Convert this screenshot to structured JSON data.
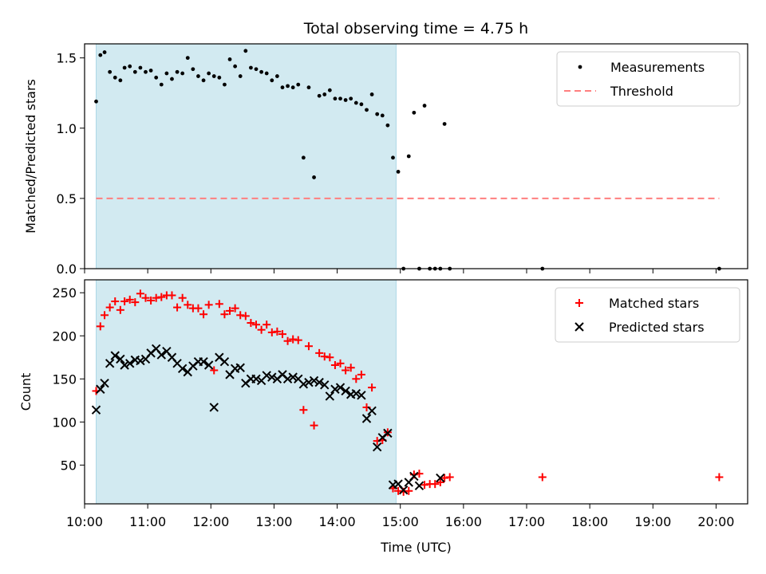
{
  "chart_data": [
    {
      "type": "scatter",
      "title": "Total observing time = 4.75 h",
      "xlabel": "",
      "ylabel": "Matched/Predicted stars",
      "xlim": [
        "10:00",
        "20:30"
      ],
      "ylim": [
        0,
        1.6
      ],
      "yticks": [
        "0.0",
        "0.5",
        "1.0",
        "1.5"
      ],
      "shaded_interval": [
        "10:11",
        "14:56"
      ],
      "shade_color": "#add8e6",
      "legend_position": "upper-right",
      "series": [
        {
          "name": "Measurements",
          "marker": "dot",
          "color": "#000000",
          "points": [
            [
              "10:11",
              1.19
            ],
            [
              "10:15",
              1.52
            ],
            [
              "10:19",
              1.54
            ],
            [
              "10:24",
              1.4
            ],
            [
              "10:29",
              1.36
            ],
            [
              "10:34",
              1.34
            ],
            [
              "10:38",
              1.43
            ],
            [
              "10:43",
              1.44
            ],
            [
              "10:48",
              1.4
            ],
            [
              "10:53",
              1.43
            ],
            [
              "10:58",
              1.4
            ],
            [
              "11:03",
              1.41
            ],
            [
              "11:08",
              1.36
            ],
            [
              "11:13",
              1.31
            ],
            [
              "11:18",
              1.39
            ],
            [
              "11:23",
              1.35
            ],
            [
              "11:28",
              1.4
            ],
            [
              "11:33",
              1.39
            ],
            [
              "11:38",
              1.5
            ],
            [
              "11:43",
              1.42
            ],
            [
              "11:48",
              1.37
            ],
            [
              "11:53",
              1.34
            ],
            [
              "11:58",
              1.39
            ],
            [
              "12:03",
              1.37
            ],
            [
              "12:08",
              1.36
            ],
            [
              "12:13",
              1.31
            ],
            [
              "12:18",
              1.49
            ],
            [
              "12:23",
              1.44
            ],
            [
              "12:28",
              1.37
            ],
            [
              "12:33",
              1.55
            ],
            [
              "12:38",
              1.43
            ],
            [
              "12:43",
              1.42
            ],
            [
              "12:48",
              1.4
            ],
            [
              "12:53",
              1.39
            ],
            [
              "12:58",
              1.34
            ],
            [
              "13:03",
              1.37
            ],
            [
              "13:08",
              1.29
            ],
            [
              "13:13",
              1.3
            ],
            [
              "13:18",
              1.29
            ],
            [
              "13:23",
              1.31
            ],
            [
              "13:28",
              0.79
            ],
            [
              "13:33",
              1.29
            ],
            [
              "13:38",
              0.65
            ],
            [
              "13:43",
              1.23
            ],
            [
              "13:48",
              1.24
            ],
            [
              "13:53",
              1.27
            ],
            [
              "13:58",
              1.21
            ],
            [
              "14:03",
              1.21
            ],
            [
              "14:08",
              1.2
            ],
            [
              "14:13",
              1.21
            ],
            [
              "14:18",
              1.18
            ],
            [
              "14:23",
              1.17
            ],
            [
              "14:28",
              1.13
            ],
            [
              "14:33",
              1.24
            ],
            [
              "14:38",
              1.1
            ],
            [
              "14:43",
              1.09
            ],
            [
              "14:48",
              1.02
            ],
            [
              "14:53",
              0.79
            ],
            [
              "14:58",
              0.69
            ],
            [
              "15:03",
              0.0
            ],
            [
              "15:08",
              0.8
            ],
            [
              "15:13",
              1.11
            ],
            [
              "15:18",
              0.0
            ],
            [
              "15:23",
              1.16
            ],
            [
              "15:28",
              0.0
            ],
            [
              "15:33",
              0.0
            ],
            [
              "15:38",
              0.0
            ],
            [
              "15:42",
              1.03
            ],
            [
              "15:47",
              0.0
            ],
            [
              "17:15",
              0.0
            ],
            [
              "20:03",
              0.0
            ]
          ]
        },
        {
          "name": "Threshold",
          "line": "dashed",
          "color": "#ff7f7f",
          "x": [
            "10:11",
            "20:03"
          ],
          "y": [
            0.5,
            0.5
          ]
        }
      ]
    },
    {
      "type": "scatter",
      "title": "",
      "xlabel": "Time (UTC)",
      "ylabel": "Count",
      "xlim": [
        "10:00",
        "20:30"
      ],
      "ylim": [
        5,
        265
      ],
      "xticks": [
        "10:00",
        "11:00",
        "12:00",
        "13:00",
        "14:00",
        "15:00",
        "16:00",
        "17:00",
        "18:00",
        "19:00",
        "20:00"
      ],
      "yticks": [
        "50",
        "100",
        "150",
        "200",
        "250"
      ],
      "shaded_interval": [
        "10:11",
        "14:56"
      ],
      "shade_color": "#add8e6",
      "legend_position": "upper-right",
      "series": [
        {
          "name": "Matched stars",
          "marker": "plus",
          "color": "#ff0000",
          "points": [
            [
              "10:11",
              136
            ],
            [
              "10:15",
              211
            ],
            [
              "10:19",
              224
            ],
            [
              "10:24",
              233
            ],
            [
              "10:29",
              240
            ],
            [
              "10:34",
              230
            ],
            [
              "10:38",
              240
            ],
            [
              "10:43",
              242
            ],
            [
              "10:48",
              239
            ],
            [
              "10:53",
              249
            ],
            [
              "10:58",
              244
            ],
            [
              "11:03",
              241
            ],
            [
              "11:08",
              244
            ],
            [
              "11:13",
              245
            ],
            [
              "11:18",
              247
            ],
            [
              "11:23",
              247
            ],
            [
              "11:28",
              233
            ],
            [
              "11:33",
              244
            ],
            [
              "11:38",
              236
            ],
            [
              "11:43",
              232
            ],
            [
              "11:48",
              232
            ],
            [
              "11:53",
              225
            ],
            [
              "11:58",
              236
            ],
            [
              "12:03",
              160
            ],
            [
              "12:08",
              237
            ],
            [
              "12:13",
              225
            ],
            [
              "12:18",
              229
            ],
            [
              "12:23",
              232
            ],
            [
              "12:28",
              224
            ],
            [
              "12:33",
              223
            ],
            [
              "12:38",
              215
            ],
            [
              "12:43",
              213
            ],
            [
              "12:48",
              207
            ],
            [
              "12:53",
              213
            ],
            [
              "12:58",
              204
            ],
            [
              "13:03",
              205
            ],
            [
              "13:08",
              202
            ],
            [
              "13:13",
              194
            ],
            [
              "13:18",
              196
            ],
            [
              "13:23",
              195
            ],
            [
              "13:28",
              114
            ],
            [
              "13:33",
              188
            ],
            [
              "13:38",
              96
            ],
            [
              "13:43",
              180
            ],
            [
              "13:48",
              176
            ],
            [
              "13:53",
              175
            ],
            [
              "13:58",
              166
            ],
            [
              "14:03",
              168
            ],
            [
              "14:08",
              160
            ],
            [
              "14:13",
              163
            ],
            [
              "14:18",
              150
            ],
            [
              "14:23",
              155
            ],
            [
              "14:28",
              117
            ],
            [
              "14:33",
              140
            ],
            [
              "14:38",
              78
            ],
            [
              "14:43",
              79
            ],
            [
              "14:48",
              88
            ],
            [
              "14:53",
              23
            ],
            [
              "14:58",
              20
            ],
            [
              "15:03",
              19
            ],
            [
              "15:08",
              20
            ],
            [
              "15:13",
              39
            ],
            [
              "15:18",
              40
            ],
            [
              "15:23",
              27
            ],
            [
              "15:28",
              28
            ],
            [
              "15:33",
              28
            ],
            [
              "15:38",
              30
            ],
            [
              "15:42",
              35
            ],
            [
              "15:47",
              36
            ],
            [
              "17:15",
              36
            ],
            [
              "20:03",
              36
            ]
          ]
        },
        {
          "name": "Predicted stars",
          "marker": "x",
          "color": "#000000",
          "points": [
            [
              "10:11",
              114
            ],
            [
              "10:15",
              138
            ],
            [
              "10:19",
              145
            ],
            [
              "10:24",
              168
            ],
            [
              "10:29",
              177
            ],
            [
              "10:34",
              173
            ],
            [
              "10:38",
              166
            ],
            [
              "10:43",
              168
            ],
            [
              "10:48",
              172
            ],
            [
              "10:53",
              171
            ],
            [
              "10:58",
              173
            ],
            [
              "11:03",
              180
            ],
            [
              "11:08",
              185
            ],
            [
              "11:13",
              178
            ],
            [
              "11:18",
              182
            ],
            [
              "11:23",
              175
            ],
            [
              "11:28",
              168
            ],
            [
              "11:33",
              162
            ],
            [
              "11:38",
              158
            ],
            [
              "11:43",
              165
            ],
            [
              "11:48",
              170
            ],
            [
              "11:53",
              170
            ],
            [
              "11:58",
              166
            ],
            [
              "12:03",
              117
            ],
            [
              "12:08",
              175
            ],
            [
              "12:13",
              170
            ],
            [
              "12:18",
              155
            ],
            [
              "12:23",
              162
            ],
            [
              "12:28",
              163
            ],
            [
              "12:33",
              145
            ],
            [
              "12:38",
              150
            ],
            [
              "12:43",
              150
            ],
            [
              "12:48",
              148
            ],
            [
              "12:53",
              154
            ],
            [
              "12:58",
              152
            ],
            [
              "13:03",
              150
            ],
            [
              "13:08",
              155
            ],
            [
              "13:13",
              150
            ],
            [
              "13:18",
              152
            ],
            [
              "13:23",
              150
            ],
            [
              "13:28",
              144
            ],
            [
              "13:33",
              146
            ],
            [
              "13:38",
              148
            ],
            [
              "13:43",
              146
            ],
            [
              "13:48",
              143
            ],
            [
              "13:53",
              130
            ],
            [
              "13:58",
              138
            ],
            [
              "14:03",
              140
            ],
            [
              "14:08",
              136
            ],
            [
              "14:13",
              132
            ],
            [
              "14:18",
              133
            ],
            [
              "14:23",
              131
            ],
            [
              "14:28",
              104
            ],
            [
              "14:33",
              113
            ],
            [
              "14:38",
              71
            ],
            [
              "14:43",
              82
            ],
            [
              "14:48",
              87
            ],
            [
              "14:53",
              27
            ],
            [
              "14:58",
              28
            ],
            [
              "15:03",
              21
            ],
            [
              "15:08",
              30
            ],
            [
              "15:13",
              37
            ],
            [
              "15:18",
              26
            ],
            [
              "15:38",
              35
            ]
          ]
        }
      ]
    }
  ]
}
